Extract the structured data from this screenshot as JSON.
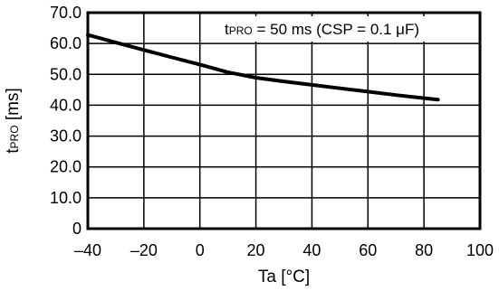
{
  "chart_data": {
    "type": "line",
    "title": "",
    "xlabel": "Ta [°C]",
    "ylabel": {
      "main": "t",
      "sub": "PRO",
      "unit": " [ms]"
    },
    "annotation": {
      "t": "t",
      "sub": "PRO",
      "rest": " = 50 ms (CSP = 0.1 μF)"
    },
    "xlim": [
      -40,
      100
    ],
    "ylim": [
      0,
      70
    ],
    "x_ticks": [
      -40,
      -20,
      0,
      20,
      40,
      60,
      80,
      100
    ],
    "x_tick_labels": [
      "–40",
      "–20",
      "0",
      "20",
      "40",
      "60",
      "80",
      "100"
    ],
    "y_ticks": [
      0,
      10,
      20,
      30,
      40,
      50,
      60,
      70
    ],
    "y_tick_labels": [
      "0",
      "10.0",
      "20.0",
      "30.0",
      "40.0",
      "50.0",
      "60.0",
      "70.0"
    ],
    "grid": true,
    "series": [
      {
        "x": [
          -40,
          -30,
          -20,
          -10,
          0,
          10,
          20,
          30,
          40,
          50,
          60,
          70,
          80,
          85
        ],
        "y": [
          62.8,
          60.3,
          57.9,
          55.5,
          53.2,
          50.7,
          48.9,
          47.7,
          46.6,
          45.5,
          44.4,
          43.3,
          42.3,
          41.8
        ]
      }
    ]
  }
}
